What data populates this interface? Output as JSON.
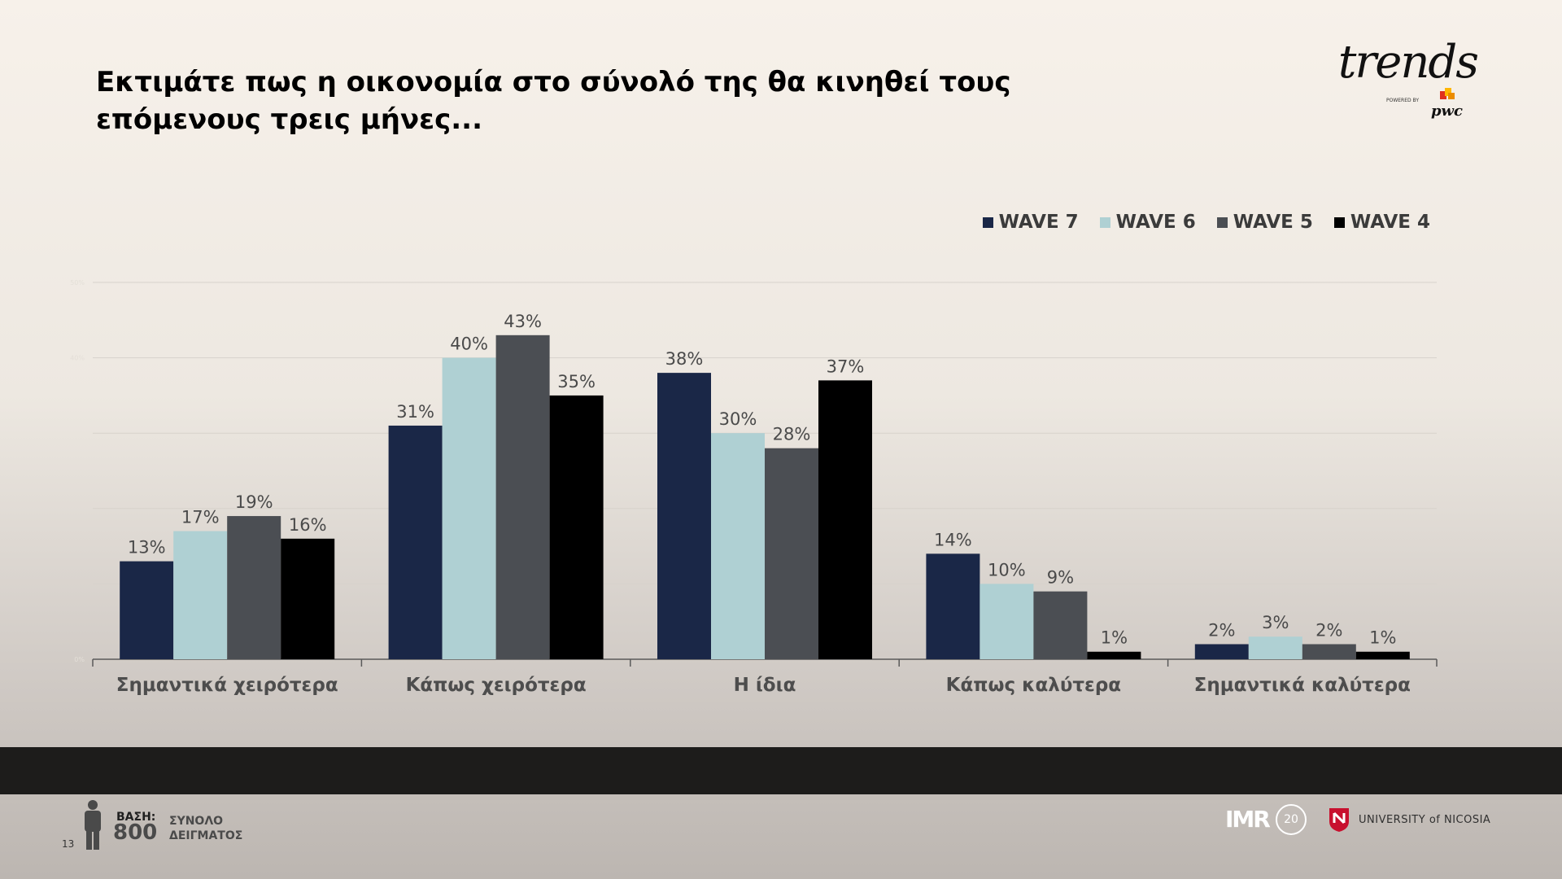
{
  "title": "Εκτιμάτε πως η οικονομία στο σύνολό της θα κινηθεί τους επόμενους τρεις μήνες...",
  "logo": {
    "brand": "trends",
    "sub": "pwc",
    "tiny": "POWERED BY"
  },
  "chart_data": {
    "type": "bar",
    "categories": [
      "Σημαντικά χειρότερα",
      "Κάπως χειρότερα",
      "Η ίδια",
      "Κάπως καλύτερα",
      "Σημαντικά καλύτερα"
    ],
    "series": [
      {
        "name": "WAVE 7",
        "color": "#1a2747",
        "values": [
          13,
          31,
          38,
          14,
          2
        ],
        "labels": [
          "13%",
          "31%",
          "38%",
          "14%",
          "2%"
        ]
      },
      {
        "name": "WAVE 6",
        "color": "#afd0d3",
        "values": [
          17,
          40,
          30,
          10,
          3
        ],
        "labels": [
          "17%",
          "40%",
          "30%",
          "10%",
          "3%"
        ]
      },
      {
        "name": "WAVE 5",
        "color": "#4b4e53",
        "values": [
          19,
          43,
          28,
          9,
          2
        ],
        "labels": [
          "19%",
          "43%",
          "28%",
          "9%",
          "2%"
        ]
      },
      {
        "name": "WAVE 4",
        "color": "#000000",
        "values": [
          16,
          35,
          37,
          1,
          1
        ],
        "labels": [
          "16%",
          "35%",
          "37%",
          "1%",
          "1%"
        ]
      }
    ],
    "ylim": [
      0,
      50
    ],
    "yticks": [
      0,
      10,
      20,
      30,
      40,
      50
    ],
    "ytick_labels": [
      "0%",
      "",
      "",
      "",
      "40%",
      "50%"
    ],
    "grid": true,
    "legend": "top-right"
  },
  "footer": {
    "base_label": "ΒΑΣΗ:",
    "base_value": "800",
    "sample_line1": "ΣΥΝΟΛΟ",
    "sample_line2": "ΔΕΙΓΜΑΤΟΣ",
    "page_number": "13",
    "imr": "IMR",
    "imr_years": "20",
    "university": "UNIVERSITY of NICOSIA"
  }
}
